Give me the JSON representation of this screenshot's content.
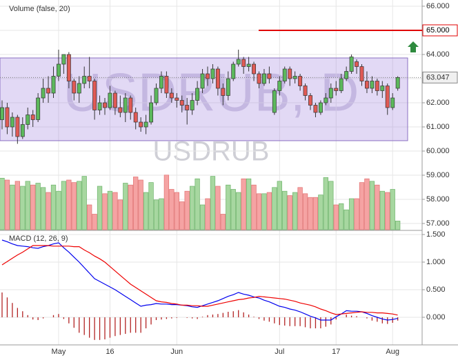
{
  "chart_data": [
    {
      "type": "candlestick",
      "symbol_watermark": "USDRUB, D",
      "watermark": "USDRUB",
      "indicator_label": "Volume (false, 20)",
      "categories": [
        null,
        null,
        null,
        null,
        null,
        null,
        null,
        null,
        null,
        null,
        null,
        "May",
        null,
        null,
        null,
        null,
        null,
        null,
        null,
        null,
        null,
        "16",
        null,
        null,
        null,
        null,
        null,
        null,
        null,
        null,
        null,
        null,
        null,
        null,
        "Jun",
        null,
        null,
        null,
        null,
        null,
        null,
        null,
        null,
        null,
        null,
        null,
        null,
        null,
        null,
        null,
        null,
        null,
        null,
        null,
        "Jul",
        null,
        null,
        null,
        null,
        null,
        null,
        null,
        null,
        null,
        null,
        "17",
        null,
        null,
        null,
        null,
        null,
        null,
        null,
        null,
        null,
        null,
        "Aug",
        null
      ],
      "open": [
        61.3,
        61.8,
        61.0,
        61.4,
        60.6,
        61.1,
        61.5,
        61.3,
        62.2,
        62.6,
        62.4,
        63.1,
        63.6,
        64.0,
        62.9,
        62.4,
        62.8,
        63.1,
        62.9,
        61.7,
        62.0,
        61.8,
        62.4,
        61.8,
        61.6,
        62.2,
        61.6,
        61.2,
        61.0,
        61.2,
        62.0,
        62.6,
        63.1,
        62.4,
        62.2,
        62.1,
        61.9,
        61.7,
        62.1,
        62.6,
        63.2,
        63.0,
        63.4,
        62.6,
        62.3,
        63.0,
        63.6,
        63.8,
        63.5,
        63.6,
        63.2,
        62.8,
        63.2,
        61.6,
        62.5,
        62.9,
        63.4,
        63.0,
        63.1,
        62.7,
        62.3,
        61.9,
        61.6,
        62.0,
        62.2,
        62.6,
        62.5,
        63.0,
        63.3,
        63.7,
        63.5,
        62.9,
        62.6,
        62.9,
        62.5,
        62.7,
        61.8,
        62.6
      ],
      "high": [
        62.1,
        62.0,
        61.6,
        61.5,
        61.4,
        61.8,
        61.7,
        62.4,
        63.0,
        63.1,
        63.5,
        64.2,
        64.0,
        64.1,
        63.0,
        63.1,
        63.5,
        63.9,
        63.0,
        62.3,
        62.2,
        62.7,
        62.5,
        62.3,
        62.4,
        62.3,
        61.8,
        61.4,
        61.5,
        62.3,
        62.8,
        63.3,
        63.3,
        62.6,
        62.4,
        62.3,
        62.2,
        62.4,
        62.9,
        63.4,
        63.5,
        63.6,
        63.5,
        62.8,
        63.3,
        63.7,
        64.2,
        63.9,
        63.9,
        63.7,
        63.3,
        63.4,
        63.5,
        62.6,
        63.1,
        63.5,
        63.5,
        63.3,
        63.2,
        62.8,
        62.4,
        62.0,
        62.1,
        62.4,
        62.8,
        62.9,
        63.2,
        63.5,
        64.0,
        63.8,
        63.6,
        63.3,
        63.1,
        63.0,
        62.9,
        62.8,
        62.4,
        63.1
      ],
      "low": [
        60.9,
        60.7,
        60.6,
        60.3,
        60.5,
        60.9,
        61.0,
        61.2,
        62.0,
        62.0,
        62.2,
        62.9,
        63.2,
        62.6,
        62.1,
        62.0,
        62.6,
        62.6,
        61.3,
        61.5,
        61.5,
        61.7,
        61.5,
        61.4,
        61.2,
        61.3,
        60.9,
        60.8,
        60.7,
        61.1,
        61.9,
        62.4,
        62.2,
        62.0,
        61.8,
        61.6,
        61.1,
        61.5,
        61.9,
        62.4,
        62.7,
        62.8,
        62.3,
        61.9,
        62.1,
        62.9,
        63.5,
        63.2,
        63.3,
        62.9,
        62.6,
        62.7,
        62.8,
        61.5,
        62.3,
        62.8,
        62.7,
        62.8,
        62.5,
        62.1,
        61.7,
        61.4,
        61.5,
        61.9,
        62.0,
        62.3,
        62.4,
        62.9,
        63.2,
        63.2,
        62.7,
        62.4,
        62.4,
        62.3,
        62.2,
        61.5,
        61.7,
        62.5
      ],
      "close": [
        61.8,
        61.0,
        61.4,
        60.6,
        61.1,
        61.5,
        61.3,
        62.2,
        62.6,
        62.4,
        63.1,
        63.6,
        64.0,
        62.9,
        62.4,
        62.8,
        63.1,
        62.9,
        61.7,
        62.0,
        61.8,
        62.4,
        61.8,
        61.6,
        62.2,
        61.6,
        61.2,
        61.0,
        61.2,
        62.0,
        62.6,
        63.1,
        62.4,
        62.2,
        62.1,
        61.9,
        61.7,
        62.1,
        62.6,
        63.2,
        63.0,
        63.4,
        62.6,
        62.3,
        63.0,
        63.6,
        63.8,
        63.5,
        63.6,
        63.2,
        62.8,
        63.2,
        63.0,
        62.5,
        62.9,
        63.4,
        63.0,
        63.1,
        62.7,
        62.3,
        61.9,
        61.6,
        62.0,
        62.2,
        62.6,
        62.5,
        63.0,
        63.3,
        63.9,
        63.5,
        62.9,
        62.6,
        62.9,
        62.5,
        62.7,
        61.8,
        62.2,
        63.047
      ],
      "volume": [
        83,
        80,
        72,
        78,
        70,
        78,
        72,
        75,
        68,
        60,
        72,
        62,
        78,
        80,
        76,
        78,
        86,
        40,
        25,
        70,
        58,
        62,
        60,
        48,
        75,
        72,
        85,
        80,
        60,
        76,
        48,
        50,
        88,
        65,
        60,
        45,
        62,
        70,
        82,
        40,
        50,
        86,
        70,
        25,
        72,
        65,
        60,
        82,
        82,
        72,
        58,
        58,
        60,
        68,
        78,
        62,
        55,
        60,
        68,
        58,
        52,
        52,
        56,
        84,
        78,
        40,
        42,
        32,
        50,
        50,
        76,
        82,
        78,
        72,
        62,
        60,
        65,
        14
      ],
      "volume_lim": [
        0,
        100
      ],
      "up_color": "#5cb85c",
      "down_color": "#e05a55",
      "ylim": [
        56.743,
        66.257
      ],
      "yticks": [
        {
          "value": 57,
          "label": "57.000"
        },
        {
          "value": 58,
          "label": "58.000"
        },
        {
          "value": 59,
          "label": "59.000"
        },
        {
          "value": 60,
          "label": "60.000"
        },
        {
          "value": 61,
          "label": "61.000"
        },
        {
          "value": 62,
          "label": "62.000"
        },
        {
          "value": 63,
          "label": "63.000"
        },
        {
          "value": 64,
          "label": "64.000"
        },
        {
          "value": 65,
          "label": "65.000"
        },
        {
          "value": 66,
          "label": "66.000"
        }
      ],
      "grid": true,
      "last_price": 63.047,
      "alert_level": {
        "value": 65,
        "label": "65.000"
      },
      "channel": [
        60.43,
        63.857
      ]
    },
    {
      "type": "macd",
      "indicator_label": "MACD (12, 26, 9)",
      "series": [
        {
          "color": "#0000ee",
          "values": [
            1.4,
            1.37,
            1.33,
            1.3,
            1.29,
            1.28,
            1.26,
            1.25,
            1.28,
            1.3,
            1.33,
            1.35,
            1.26,
            1.18,
            1.09,
            1.0,
            0.9,
            0.8,
            0.7,
            0.65,
            0.6,
            0.55,
            0.5,
            0.44,
            0.38,
            0.32,
            0.26,
            0.2,
            0.22,
            0.23,
            0.25,
            0.24,
            0.24,
            0.23,
            0.23,
            0.22,
            0.21,
            0.19,
            0.18,
            0.21,
            0.24,
            0.27,
            0.3,
            0.34,
            0.38,
            0.41,
            0.45,
            0.42,
            0.4,
            0.37,
            0.35,
            0.31,
            0.28,
            0.24,
            0.2,
            0.18,
            0.15,
            0.13,
            0.1,
            0.06,
            0.02,
            -0.01,
            -0.05,
            -0.05,
            -0.05,
            0.01,
            0.06,
            0.12,
            0.11,
            0.11,
            0.1,
            0.07,
            0.03,
            0.0,
            -0.03,
            -0.05,
            -0.04,
            -0.02
          ]
        },
        {
          "color": "#ee0000",
          "values": [
            0.95,
            1.01,
            1.07,
            1.13,
            1.18,
            1.24,
            1.3,
            1.3,
            1.3,
            1.3,
            1.29,
            1.29,
            1.29,
            1.29,
            1.28,
            1.28,
            1.22,
            1.17,
            1.11,
            1.06,
            1.0,
            0.92,
            0.84,
            0.76,
            0.68,
            0.6,
            0.54,
            0.48,
            0.42,
            0.36,
            0.3,
            0.28,
            0.27,
            0.25,
            0.24,
            0.22,
            0.22,
            0.21,
            0.21,
            0.2,
            0.2,
            0.22,
            0.24,
            0.26,
            0.28,
            0.3,
            0.32,
            0.33,
            0.35,
            0.36,
            0.38,
            0.37,
            0.36,
            0.35,
            0.34,
            0.33,
            0.31,
            0.29,
            0.26,
            0.24,
            0.22,
            0.19,
            0.15,
            0.12,
            0.08,
            0.05,
            0.06,
            0.07,
            0.08,
            0.09,
            0.1,
            0.09,
            0.09,
            0.08,
            0.08,
            0.07,
            0.06,
            0.04
          ]
        }
      ],
      "histogram": {
        "color": "#b22222",
        "values": [
          0.45,
          0.36,
          0.26,
          0.17,
          0.11,
          0.04,
          -0.04,
          -0.05,
          -0.02,
          0.0,
          0.04,
          0.06,
          -0.03,
          -0.11,
          -0.19,
          -0.28,
          -0.32,
          -0.37,
          -0.41,
          -0.41,
          -0.4,
          -0.37,
          -0.34,
          -0.32,
          -0.3,
          -0.28,
          -0.28,
          -0.28,
          -0.2,
          -0.13,
          -0.05,
          -0.04,
          -0.03,
          -0.02,
          -0.01,
          0.0,
          -0.01,
          -0.02,
          -0.03,
          0.01,
          0.04,
          0.05,
          0.06,
          0.08,
          0.1,
          0.11,
          0.13,
          0.09,
          0.05,
          0.01,
          -0.03,
          -0.06,
          -0.08,
          -0.11,
          -0.14,
          -0.15,
          -0.16,
          -0.16,
          -0.16,
          -0.18,
          -0.2,
          -0.2,
          -0.2,
          -0.17,
          -0.13,
          -0.04,
          0.0,
          0.05,
          0.03,
          0.02,
          0.0,
          -0.02,
          -0.06,
          -0.08,
          -0.11,
          -0.12,
          -0.1,
          -0.06
        ]
      },
      "ylim": [
        -0.5,
        1.5625
      ],
      "yticks": [
        {
          "value": 0,
          "label": "0.000"
        },
        {
          "value": 0.5,
          "label": "0.500"
        },
        {
          "value": 1,
          "label": "1.000"
        },
        {
          "value": 1.5,
          "label": "1.500"
        }
      ],
      "grid": true
    }
  ]
}
